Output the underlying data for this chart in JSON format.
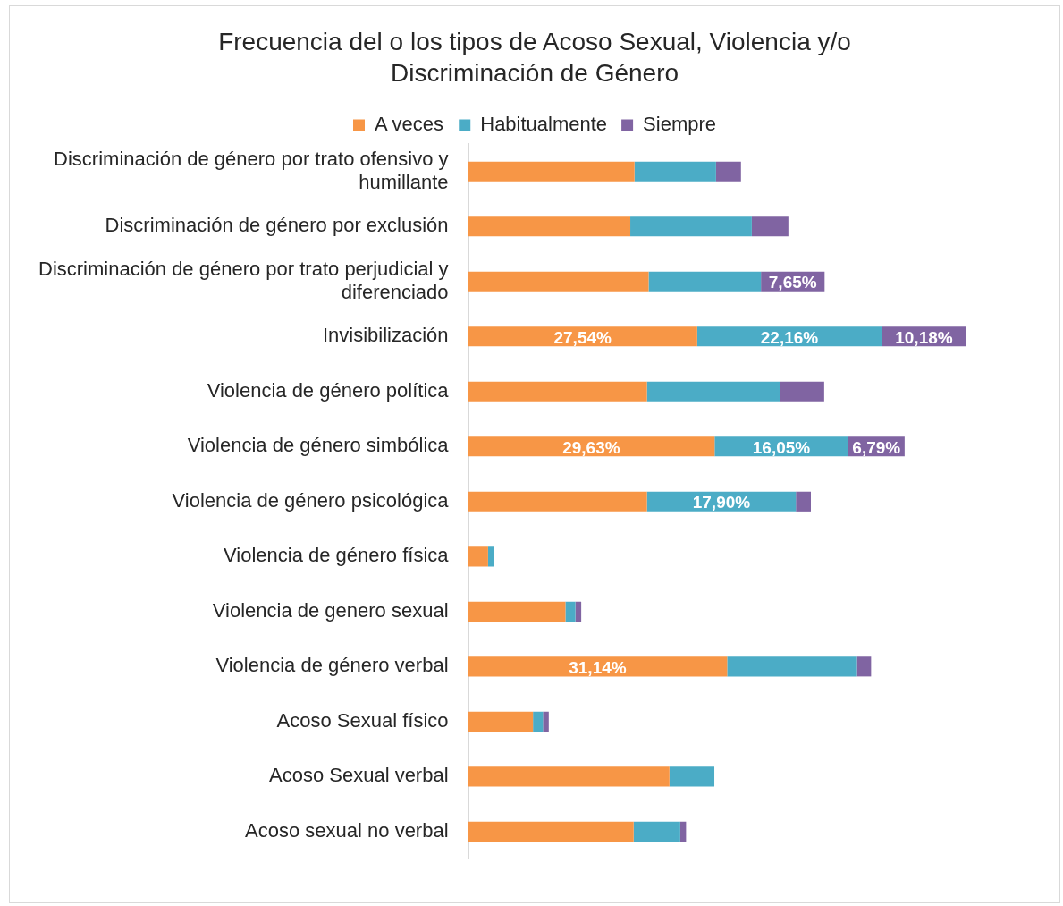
{
  "chart_data": {
    "type": "bar",
    "orientation": "horizontal",
    "stacked": true,
    "title": "Frecuencia del o los tipos de Acoso Sexual, Violencia y/o Discriminación de Género",
    "categories": [
      "Discriminación de género por trato ofensivo y humillante",
      "Discriminación de género por exclusión",
      "Discriminación de género por trato perjudicial y diferenciado",
      "Invisibilización",
      "Violencia de género política",
      "Violencia de género simbólica",
      "Violencia de género psicológica",
      "Violencia de género física",
      "Violencia de genero sexual",
      "Violencia de género verbal",
      "Acoso Sexual físico",
      "Acoso Sexual verbal",
      "Acoso sexual no verbal"
    ],
    "series": [
      {
        "name": "A veces",
        "color": "#f79646",
        "values": [
          20.0,
          19.5,
          21.7,
          27.54,
          21.5,
          29.63,
          21.5,
          2.4,
          11.7,
          31.14,
          7.8,
          24.2,
          19.9
        ],
        "value_labels": [
          null,
          null,
          null,
          "27,54%",
          null,
          "29,63%",
          null,
          null,
          null,
          "31,14%",
          null,
          null,
          null
        ]
      },
      {
        "name": "Habitualmente",
        "color": "#4bacc6",
        "values": [
          9.8,
          14.6,
          13.5,
          22.16,
          16.0,
          16.05,
          17.9,
          0.7,
          1.2,
          15.6,
          1.2,
          5.4,
          5.6
        ],
        "value_labels": [
          null,
          null,
          null,
          "22,16%",
          null,
          "16,05%",
          "17,90%",
          null,
          null,
          null,
          null,
          null,
          null
        ]
      },
      {
        "name": "Siempre",
        "color": "#8064a2",
        "values": [
          3.0,
          4.4,
          7.65,
          10.18,
          5.3,
          6.79,
          1.8,
          null,
          0.7,
          1.7,
          0.7,
          null,
          0.7
        ],
        "value_labels": [
          null,
          null,
          "7,65%",
          "10,18%",
          null,
          "6,79%",
          null,
          null,
          null,
          null,
          null,
          null,
          null
        ]
      }
    ],
    "tick_labels": "y",
    "grid": false,
    "legend": "top"
  }
}
